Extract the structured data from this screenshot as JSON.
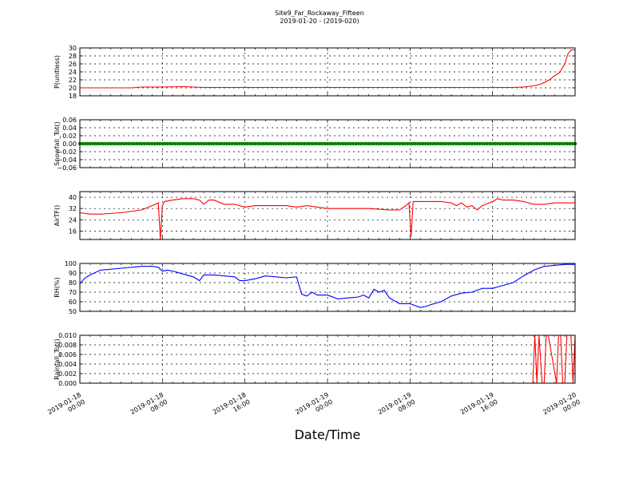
{
  "chart_data": {
    "title": "Site9_Far_Rockaway_Fifteen",
    "subtitle": "2019-01-20 - (2019-020)",
    "xlabel": "Date/Time",
    "x_ticks": [
      {
        "line1": "2019-01-18",
        "line2": "00:00"
      },
      {
        "line1": "2019-01-18",
        "line2": "08:00"
      },
      {
        "line1": "2019-01-18",
        "line2": "16:00"
      },
      {
        "line1": "2019-01-19",
        "line2": "00:00"
      },
      {
        "line1": "2019-01-19",
        "line2": "08:00"
      },
      {
        "line1": "2019-01-19",
        "line2": "16:00"
      },
      {
        "line1": "2019-01-20",
        "line2": "00:00"
      }
    ],
    "xlim": [
      "2019-01-18 00:00",
      "2019-01-20 00:00"
    ],
    "grid": true,
    "panels": [
      {
        "type": "line",
        "ylabel": "P(unitless)",
        "color": "#ff0000",
        "ylim": [
          18,
          30
        ],
        "yticks": [
          18,
          20,
          22,
          24,
          26,
          28,
          30
        ],
        "decimals": 0,
        "x_hours": [
          0,
          5,
          6,
          8,
          10,
          12,
          14,
          16,
          20,
          24,
          28,
          32,
          36,
          40,
          42,
          43,
          44,
          44.5,
          45,
          45.5,
          46,
          46.5,
          47,
          47.3,
          47.6,
          48
        ],
        "values": [
          20,
          20,
          20.2,
          20.2,
          20.3,
          20.1,
          20.1,
          20.1,
          20.1,
          20.1,
          20.1,
          20.1,
          20.1,
          20.1,
          20.1,
          20.2,
          20.5,
          20.8,
          21.3,
          22,
          23,
          23.8,
          26,
          28.5,
          29.5,
          29.5
        ]
      },
      {
        "type": "scatter_line",
        "ylabel": "Snowfall_Tot()",
        "color": "#008000",
        "ylim": [
          -0.06,
          0.06
        ],
        "yticks": [
          -0.06,
          -0.04,
          -0.02,
          0.0,
          0.02,
          0.04,
          0.06
        ],
        "decimals": 2,
        "x_hours": [
          0,
          48
        ],
        "values": [
          0,
          0
        ]
      },
      {
        "type": "line",
        "ylabel": "AirTF()",
        "color": "#ff0000",
        "ylim": [
          10,
          44
        ],
        "yticks": [
          16,
          24,
          32,
          40
        ],
        "decimals": 0,
        "x_hours": [
          0,
          1,
          2,
          4,
          6,
          7,
          7.6,
          7.8,
          8.0,
          8.2,
          9,
          10,
          11,
          11.6,
          12,
          12.5,
          13,
          14,
          15,
          16,
          17,
          18,
          20,
          21,
          22,
          24,
          26,
          28,
          30,
          31,
          31.6,
          31.9,
          32.1,
          32.3,
          33,
          35,
          36,
          36.5,
          37,
          37.5,
          38,
          38.5,
          39,
          40,
          40.5,
          41,
          42,
          43,
          44,
          45,
          46,
          47,
          48
        ],
        "values": [
          29,
          28,
          28,
          29,
          31,
          34,
          36,
          10,
          34,
          37,
          38,
          39,
          39,
          38,
          35,
          38,
          38,
          35,
          35,
          33,
          34,
          34,
          34,
          33,
          34,
          32,
          32,
          32,
          31,
          31,
          34,
          36,
          12,
          37,
          37,
          37,
          36,
          34,
          36,
          33,
          34,
          31,
          34,
          37,
          39,
          38,
          38,
          37,
          35,
          35,
          36,
          36,
          36
        ]
      },
      {
        "type": "line",
        "ylabel": "RH(%)",
        "color": "#0000ff",
        "ylim": [
          50,
          100
        ],
        "yticks": [
          50,
          60,
          70,
          80,
          90,
          100
        ],
        "decimals": 0,
        "x_hours": [
          0,
          0.5,
          1,
          2,
          4,
          6,
          7,
          7.6,
          8,
          8.5,
          9,
          10,
          11,
          11.6,
          12,
          13,
          14,
          15,
          15.5,
          16,
          17,
          18,
          19,
          20,
          21,
          21.5,
          22,
          22.5,
          23,
          24,
          25,
          26,
          27,
          27.5,
          28,
          28.5,
          29,
          29.5,
          30,
          31,
          32,
          33,
          33.5,
          34,
          35,
          36,
          37,
          38,
          39,
          40,
          41,
          42,
          43,
          44,
          45,
          46,
          47,
          48
        ],
        "values": [
          79,
          85,
          88,
          93,
          95,
          97,
          97,
          96,
          92,
          93,
          92,
          89,
          86,
          82,
          88,
          88,
          87,
          86,
          82,
          82,
          84,
          87,
          86,
          85,
          86,
          68,
          66,
          70,
          67,
          67,
          63,
          64,
          65,
          67,
          64,
          73,
          70,
          72,
          64,
          58,
          58,
          54,
          55,
          57,
          60,
          66,
          69,
          70,
          74,
          74,
          77,
          80,
          87,
          93,
          97,
          98,
          99,
          99
        ]
      },
      {
        "type": "line",
        "ylabel": "Rainfall_Tot()",
        "color": "#ff0000",
        "ylim": [
          0,
          0.01
        ],
        "yticks": [
          0.0,
          0.002,
          0.004,
          0.006,
          0.008,
          0.01
        ],
        "decimals": 3,
        "x_hours": [
          0,
          43.9,
          44.1,
          44.3,
          44.5,
          44.8,
          45,
          45.2,
          45.4,
          46.2,
          46.4,
          46.6,
          46.8,
          47.0,
          47.2,
          47.6,
          47.8,
          48
        ],
        "values": [
          0,
          0,
          0.01,
          0,
          0.01,
          0,
          0,
          0.01,
          0.01,
          0,
          0.01,
          0.01,
          0,
          0,
          0.01,
          0.01,
          0,
          0.01
        ]
      }
    ]
  }
}
